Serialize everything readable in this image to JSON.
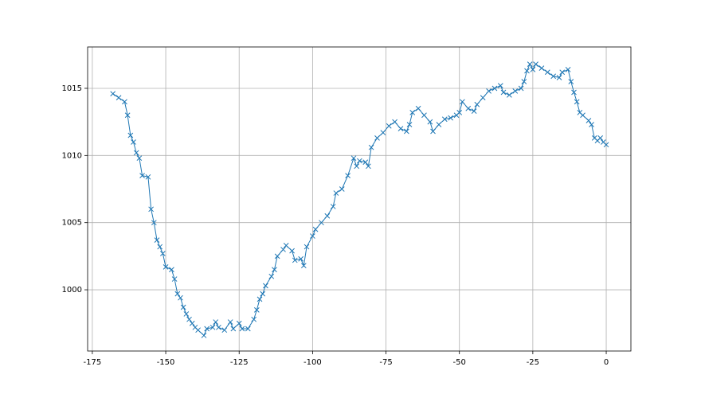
{
  "chart_data": {
    "type": "line",
    "marker": "x",
    "grid": true,
    "x": [
      -168,
      -166,
      -164,
      -163,
      -162,
      -161,
      -160,
      -159,
      -158,
      -156,
      -155,
      -154,
      -153,
      -152,
      -151,
      -150,
      -148,
      -147,
      -146,
      -145,
      -144,
      -143,
      -142,
      -141,
      -140,
      -139,
      -137,
      -136,
      -134,
      -133,
      -132,
      -130,
      -128,
      -127,
      -125,
      -124,
      -122,
      -120,
      -119,
      -118,
      -117,
      -116,
      -114,
      -113,
      -112,
      -110,
      -109,
      -107,
      -106,
      -104,
      -103,
      -102,
      -100,
      -99,
      -97,
      -95,
      -93,
      -92,
      -90,
      -88,
      -86,
      -85,
      -84,
      -82,
      -81,
      -80,
      -78,
      -76,
      -74,
      -72,
      -70,
      -68,
      -67,
      -66,
      -64,
      -62,
      -60,
      -59,
      -57,
      -55,
      -53,
      -51,
      -50,
      -49,
      -47,
      -45,
      -44,
      -42,
      -40,
      -38,
      -36,
      -35,
      -33,
      -31,
      -29,
      -28,
      -27,
      -26,
      -25,
      -24,
      -22,
      -20,
      -18,
      -16,
      -15,
      -13,
      -12,
      -11,
      -10,
      -9,
      -8,
      -6,
      -5,
      -4,
      -3,
      -2,
      -1,
      0
    ],
    "series": [
      {
        "color": "#1f77b4",
        "values": [
          1014.6,
          1014.3,
          1014.0,
          1013.0,
          1011.5,
          1011.0,
          1010.2,
          1009.8,
          1008.5,
          1008.4,
          1006.0,
          1005.0,
          1003.7,
          1003.2,
          1002.7,
          1001.7,
          1001.5,
          1000.8,
          999.7,
          999.4,
          998.7,
          998.2,
          997.8,
          997.5,
          997.2,
          997.0,
          996.6,
          997.1,
          997.2,
          997.6,
          997.2,
          997.0,
          997.6,
          997.1,
          997.5,
          997.1,
          997.1,
          997.8,
          998.5,
          999.3,
          999.7,
          1000.3,
          1001.0,
          1001.5,
          1002.5,
          1003.0,
          1003.3,
          1002.9,
          1002.2,
          1002.3,
          1001.8,
          1003.2,
          1004.0,
          1004.5,
          1005.0,
          1005.5,
          1006.2,
          1007.2,
          1007.5,
          1008.5,
          1009.8,
          1009.2,
          1009.6,
          1009.5,
          1009.2,
          1010.6,
          1011.3,
          1011.7,
          1012.2,
          1012.5,
          1012.0,
          1011.8,
          1012.3,
          1013.2,
          1013.5,
          1013.0,
          1012.5,
          1011.8,
          1012.3,
          1012.7,
          1012.8,
          1013.0,
          1013.2,
          1014.0,
          1013.5,
          1013.3,
          1013.8,
          1014.3,
          1014.8,
          1015.0,
          1015.2,
          1014.7,
          1014.5,
          1014.8,
          1015.0,
          1015.5,
          1016.3,
          1016.8,
          1016.4,
          1016.8,
          1016.5,
          1016.2,
          1015.9,
          1015.8,
          1016.2,
          1016.4,
          1015.5,
          1014.7,
          1014.0,
          1013.2,
          1013.0,
          1012.6,
          1012.3,
          1011.3,
          1011.1,
          1011.3,
          1011.0,
          1010.8
        ]
      }
    ],
    "xlim": [
      -176.6,
      8.4
    ],
    "xticks": [
      -175,
      -150,
      -125,
      -100,
      -75,
      -50,
      -25,
      0
    ],
    "ylim": [
      995.44,
      1018.08
    ],
    "yticks": [
      1000,
      1005,
      1010,
      1015
    ]
  }
}
